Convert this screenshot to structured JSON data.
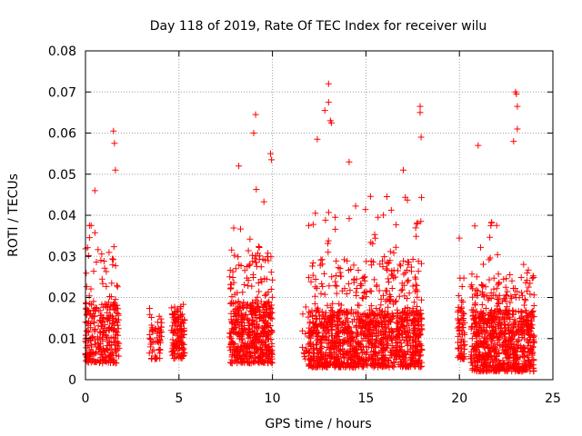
{
  "chart_data": {
    "type": "scatter",
    "title": "Day 118 of 2019, Rate Of TEC Index for receiver wilu",
    "xlabel": "GPS time / hours",
    "ylabel": "ROTI / TECUs",
    "xlim": [
      0,
      25
    ],
    "ylim": [
      0,
      0.08
    ],
    "grid": true,
    "marker": "+",
    "marker_color": "#ff0000",
    "x_ticks": [
      {
        "value": 0,
        "label": "0"
      },
      {
        "value": 5,
        "label": "5"
      },
      {
        "value": 10,
        "label": "10"
      },
      {
        "value": 15,
        "label": "15"
      },
      {
        "value": 20,
        "label": "20"
      },
      {
        "value": 25,
        "label": "25"
      }
    ],
    "y_ticks": [
      {
        "value": 0,
        "label": "0"
      },
      {
        "value": 0.01,
        "label": "0.01"
      },
      {
        "value": 0.02,
        "label": "0.02"
      },
      {
        "value": 0.03,
        "label": "0.03"
      },
      {
        "value": 0.04,
        "label": "0.04"
      },
      {
        "value": 0.05,
        "label": "0.05"
      },
      {
        "value": 0.06,
        "label": "0.06"
      },
      {
        "value": 0.07,
        "label": "0.07"
      },
      {
        "value": 0.08,
        "label": "0.08"
      }
    ],
    "clusters": [
      {
        "x_range": [
          0.0,
          1.8
        ],
        "density": 300,
        "low": 0.004,
        "base": 0.013,
        "spike": 0.05
      },
      {
        "x_range": [
          3.4,
          4.1
        ],
        "density": 60,
        "low": 0.005,
        "base": 0.01,
        "spike": 0.02
      },
      {
        "x_range": [
          4.6,
          5.3
        ],
        "density": 120,
        "low": 0.005,
        "base": 0.012,
        "spike": 0.025
      },
      {
        "x_range": [
          7.7,
          10.0
        ],
        "density": 520,
        "low": 0.004,
        "base": 0.013,
        "spike": 0.05
      },
      {
        "x_range": [
          11.6,
          11.9
        ],
        "density": 12,
        "low": 0.005,
        "base": 0.01,
        "spike": 0.03
      },
      {
        "x_range": [
          11.9,
          18.0
        ],
        "density": 1300,
        "low": 0.003,
        "base": 0.011,
        "spike": 0.045
      },
      {
        "x_range": [
          19.9,
          20.3
        ],
        "density": 70,
        "low": 0.005,
        "base": 0.012,
        "spike": 0.04
      },
      {
        "x_range": [
          20.6,
          24.0
        ],
        "density": 800,
        "low": 0.002,
        "base": 0.011,
        "spike": 0.04
      }
    ],
    "outliers": [
      {
        "x": 0.5,
        "y": 0.046
      },
      {
        "x": 0.3,
        "y": 0.0375
      },
      {
        "x": 1.5,
        "y": 0.0605
      },
      {
        "x": 1.55,
        "y": 0.0575
      },
      {
        "x": 1.6,
        "y": 0.051
      },
      {
        "x": 8.2,
        "y": 0.052
      },
      {
        "x": 9.0,
        "y": 0.06
      },
      {
        "x": 9.1,
        "y": 0.0645
      },
      {
        "x": 9.9,
        "y": 0.055
      },
      {
        "x": 9.95,
        "y": 0.0535
      },
      {
        "x": 12.4,
        "y": 0.0585
      },
      {
        "x": 12.8,
        "y": 0.0655
      },
      {
        "x": 13.0,
        "y": 0.072
      },
      {
        "x": 13.0,
        "y": 0.0675
      },
      {
        "x": 13.1,
        "y": 0.063
      },
      {
        "x": 13.15,
        "y": 0.0625
      },
      {
        "x": 14.1,
        "y": 0.053
      },
      {
        "x": 17.0,
        "y": 0.051
      },
      {
        "x": 17.9,
        "y": 0.0665
      },
      {
        "x": 17.9,
        "y": 0.065
      },
      {
        "x": 17.95,
        "y": 0.059
      },
      {
        "x": 21.0,
        "y": 0.057
      },
      {
        "x": 23.0,
        "y": 0.07
      },
      {
        "x": 23.05,
        "y": 0.0695
      },
      {
        "x": 23.1,
        "y": 0.0665
      },
      {
        "x": 23.1,
        "y": 0.061
      },
      {
        "x": 22.9,
        "y": 0.058
      }
    ]
  }
}
